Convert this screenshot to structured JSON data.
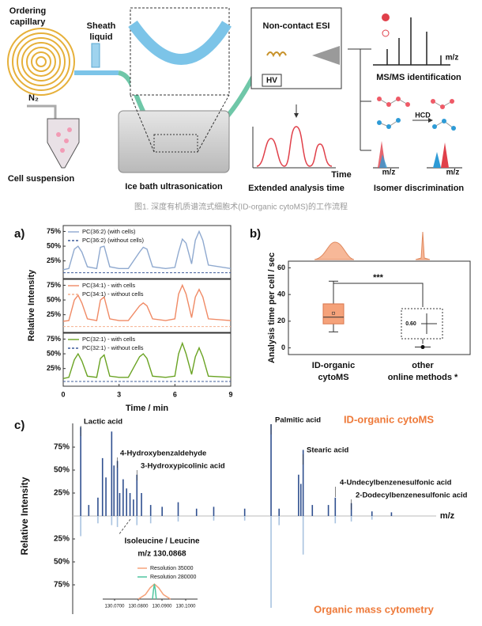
{
  "schematic": {
    "ordering": [
      "Ordering",
      "capillary"
    ],
    "sheath": [
      "Sheath",
      "liquid"
    ],
    "gas": "N₂",
    "cell_suspension": "Cell suspension",
    "ice_bath": "Ice bath ultrasonication",
    "esi": "Non-contact ESI",
    "hv": "HV",
    "time": "Time",
    "extended": "Extended analysis time",
    "mz_1": "m/z",
    "msms": "MS/MS identification",
    "hcd": "HCD",
    "mz_2": "m/z",
    "mz_3": "m/z",
    "isomer": "Isomer discrimination"
  },
  "caption": "图1. 深度有机质谱流式细胞术(ID-organic cytoMS)的工作流程",
  "chart_data": [
    {
      "type": "line",
      "panel": "a)",
      "ylabel": "Relative Intensity",
      "x": [
        0,
        0.3,
        0.6,
        0.8,
        1.0,
        1.3,
        1.8,
        2.0,
        2.2,
        2.5,
        3.0,
        3.5,
        4.1,
        4.3,
        4.5,
        4.8,
        5.5,
        6.0,
        6.2,
        6.4,
        6.6,
        6.9,
        7.1,
        7.3,
        7.5,
        7.8,
        9.0
      ],
      "xlim": [
        0,
        9
      ],
      "ylim": [
        -5,
        85
      ],
      "yticks": [
        {
          "value": 25,
          "label": "25%"
        },
        {
          "value": 50,
          "label": "50%"
        },
        {
          "value": 75,
          "label": "75%"
        }
      ],
      "series": [
        {
          "name": "PC(36:2) (with cells)",
          "color": "#8fa9cf",
          "dash": false,
          "values": [
            10,
            12,
            45,
            50,
            40,
            15,
            12,
            48,
            50,
            15,
            12,
            12,
            40,
            48,
            45,
            15,
            12,
            14,
            40,
            62,
            55,
            20,
            60,
            75,
            60,
            18,
            12
          ]
        },
        {
          "name": "PC(36:2) (without cells)",
          "color": "#3e5c9a",
          "dash": true,
          "values": [
            5,
            5,
            5,
            5,
            5,
            5,
            5,
            5,
            5,
            5,
            5,
            5,
            5,
            5,
            5,
            5,
            5,
            5,
            5,
            5,
            5,
            5,
            5,
            5,
            5,
            5,
            5
          ]
        }
      ]
    },
    {
      "type": "line",
      "x": [
        0,
        0.3,
        0.6,
        0.8,
        1.0,
        1.3,
        1.8,
        2.0,
        2.2,
        2.5,
        3.0,
        3.5,
        4.1,
        4.3,
        4.5,
        4.8,
        5.5,
        6.0,
        6.2,
        6.4,
        6.6,
        6.9,
        7.1,
        7.3,
        7.5,
        7.8,
        9.0
      ],
      "xlim": [
        0,
        9
      ],
      "ylim": [
        -5,
        85
      ],
      "yticks": [
        {
          "value": 25,
          "label": "25%"
        },
        {
          "value": 50,
          "label": "50%"
        },
        {
          "value": 75,
          "label": "75%"
        }
      ],
      "series": [
        {
          "name": "PC(34:1) - with cells",
          "color": "#f08a65",
          "dash": false,
          "values": [
            14,
            15,
            50,
            58,
            45,
            18,
            15,
            50,
            55,
            18,
            15,
            15,
            40,
            45,
            40,
            18,
            15,
            18,
            60,
            75,
            60,
            20,
            55,
            68,
            55,
            18,
            15
          ]
        },
        {
          "name": "PC(34:1) - without cells",
          "color": "#f5b08f",
          "dash": true,
          "values": [
            5,
            5,
            5,
            5,
            5,
            5,
            5,
            5,
            5,
            5,
            5,
            5,
            5,
            5,
            5,
            5,
            5,
            5,
            5,
            5,
            5,
            5,
            5,
            5,
            5,
            5,
            5
          ]
        }
      ]
    },
    {
      "type": "line",
      "xlabel": "Time / min",
      "x": [
        0,
        0.3,
        0.6,
        0.8,
        1.0,
        1.3,
        1.8,
        2.0,
        2.2,
        2.5,
        3.0,
        3.5,
        4.1,
        4.3,
        4.5,
        4.8,
        5.5,
        6.0,
        6.2,
        6.4,
        6.6,
        6.9,
        7.1,
        7.3,
        7.5,
        7.8,
        9.0
      ],
      "xlim": [
        0,
        9
      ],
      "ylim": [
        -5,
        85
      ],
      "xticks": [
        0,
        3,
        6,
        9
      ],
      "yticks": [
        {
          "value": 25,
          "label": "25%"
        },
        {
          "value": 50,
          "label": "50%"
        },
        {
          "value": 75,
          "label": "75%"
        }
      ],
      "series": [
        {
          "name": "PC(32:1) - with cells",
          "color": "#6aa323",
          "dash": false,
          "values": [
            8,
            10,
            40,
            50,
            38,
            12,
            10,
            42,
            48,
            12,
            10,
            10,
            45,
            50,
            42,
            12,
            10,
            12,
            50,
            68,
            50,
            15,
            45,
            60,
            45,
            12,
            10
          ]
        },
        {
          "name": "PC(32:1) - without cells",
          "color": "#3e5c9a",
          "dash": true,
          "values": [
            3,
            3,
            3,
            3,
            3,
            3,
            3,
            3,
            3,
            3,
            3,
            3,
            3,
            3,
            3,
            3,
            3,
            3,
            3,
            3,
            3,
            3,
            3,
            3,
            3,
            3,
            3
          ]
        }
      ]
    },
    {
      "type": "box",
      "panel": "b)",
      "ylabel": "Analysis time per cell / sec",
      "categories": [
        [
          "ID-organic",
          "cytoMS"
        ],
        [
          "other",
          "online methods *"
        ]
      ],
      "ylim": [
        -5,
        65
      ],
      "yticks": [
        0,
        20,
        40,
        60
      ],
      "color": "#f5a27a",
      "boxes": [
        {
          "min": 12,
          "q1": 18,
          "median": 23,
          "q3": 33,
          "max": 50,
          "mean": 26
        },
        {
          "value": 0.6,
          "label": "0.60"
        }
      ],
      "annotation": "***"
    },
    {
      "type": "mirror",
      "panel": "c)",
      "ylabel": "Relative Intensity",
      "xlabel": "m/z",
      "xlim": [
        82,
        399
      ],
      "ylim": [
        0,
        100
      ],
      "y2lim": [
        0,
        100
      ],
      "yticks": [
        {
          "value": 25,
          "label": "25%"
        },
        {
          "value": 50,
          "label": "50%"
        },
        {
          "value": 75,
          "label": "75%"
        }
      ],
      "y2ticks": [
        {
          "value": 25,
          "label": "25%"
        },
        {
          "value": 50,
          "label": "50%"
        },
        {
          "value": 75,
          "label": "75%"
        }
      ],
      "series": [
        {
          "name": "ID-organic cytoMS",
          "color": "#2f4f8f",
          "x": [
            89,
            96,
            104,
            108,
            111,
            116,
            118,
            121,
            123,
            126,
            129,
            132,
            135,
            138,
            142,
            150,
            160,
            174,
            190,
            205,
            232,
            255,
            262,
            279,
            281,
            283,
            291,
            305,
            311,
            325,
            343,
            360
          ],
          "values": [
            97,
            12,
            20,
            63,
            42,
            92,
            55,
            60,
            25,
            40,
            30,
            25,
            18,
            45,
            25,
            12,
            10,
            15,
            8,
            10,
            8,
            100,
            8,
            45,
            35,
            72,
            12,
            12,
            20,
            14,
            5,
            4
          ]
        },
        {
          "name": "Organic mass cytometry",
          "color": "#a9c3e0",
          "axis": "y2",
          "x": [
            89,
            104,
            116,
            121,
            138,
            150,
            174,
            205,
            232,
            255,
            262,
            283,
            311,
            325,
            343
          ],
          "values": [
            22,
            8,
            10,
            12,
            10,
            8,
            6,
            5,
            5,
            100,
            10,
            42,
            8,
            6,
            4
          ]
        }
      ],
      "annotations": [
        {
          "text": "Lactic acid",
          "x": 89
        },
        {
          "text": "4-Hydroxybenzaldehyde",
          "x": 121
        },
        {
          "text": "3-Hydroxypicolinic acid",
          "x": 138
        },
        {
          "text": "Palmitic acid",
          "x": 255
        },
        {
          "text": "Stearic acid",
          "x": 283
        },
        {
          "text": "4-Undecylbenzenesulfonic acid",
          "x": 311
        },
        {
          "text": "2-Dodecylbenzenesulfonic acid",
          "x": 325
        }
      ]
    },
    {
      "type": "line",
      "annotation": [
        "Isoleucine / Leucine",
        "m/z 130.0868"
      ],
      "xlim": [
        130.065,
        130.105
      ],
      "ylim": [
        0,
        100
      ],
      "xticks": [
        {
          "value": 130.07,
          "label": "130.0700"
        },
        {
          "value": 130.08,
          "label": "130.0800"
        },
        {
          "value": 130.09,
          "label": "130.0900"
        },
        {
          "value": 130.1,
          "label": "130.1000"
        }
      ],
      "series": [
        {
          "name": "Resolution 35000",
          "color": "#f5a27a",
          "x": [
            130.08,
            130.083,
            130.085,
            130.0868,
            130.0886,
            130.0906,
            130.0936
          ],
          "values": [
            0,
            30,
            75,
            100,
            75,
            30,
            0
          ]
        },
        {
          "name": "Resolution 280000",
          "color": "#4fc6a0",
          "x": [
            130.086,
            130.0864,
            130.0868,
            130.0872,
            130.0876
          ],
          "values": [
            0,
            60,
            100,
            60,
            0
          ]
        }
      ]
    }
  ]
}
